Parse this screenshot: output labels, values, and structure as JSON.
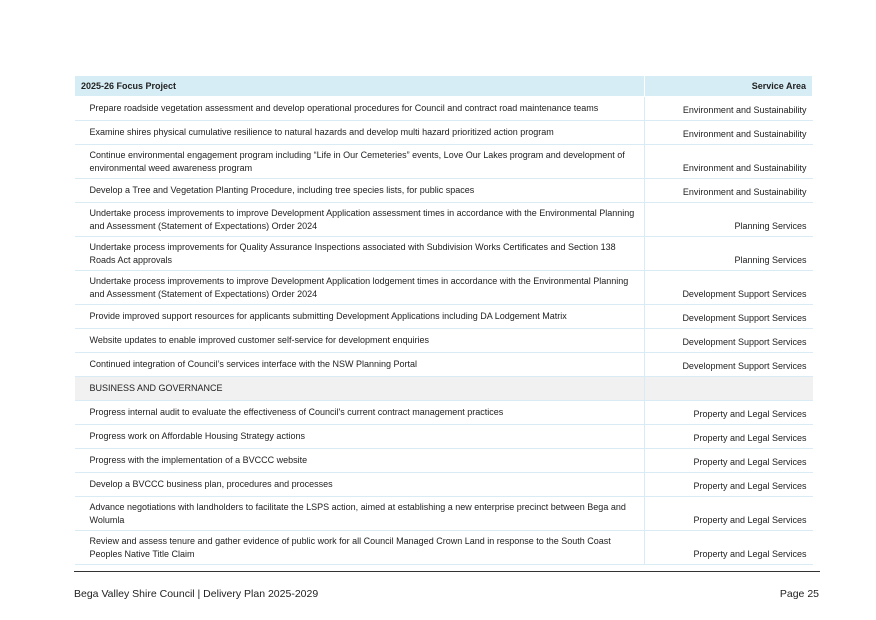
{
  "table": {
    "headers": [
      "2025-26 Focus Project",
      "Service Area"
    ],
    "rows": [
      {
        "project": "Prepare roadside vegetation assessment and develop operational procedures for Council and contract road maintenance teams",
        "service": "Environment and Sustainability"
      },
      {
        "project": "Examine shires physical cumulative resilience to natural hazards and develop multi hazard prioritized action program",
        "service": "Environment and Sustainability"
      },
      {
        "project": "Continue environmental engagement program including “Life in Our Cemeteries” events, Love Our Lakes program and development of environmental weed awareness program",
        "service": "Environment and Sustainability"
      },
      {
        "project": "Develop a Tree and Vegetation Planting Procedure, including tree species lists, for public spaces",
        "service": "Environment and Sustainability"
      },
      {
        "project": "Undertake process improvements to improve Development Application assessment times in accordance with the Environmental Planning and Assessment (Statement of Expectations) Order 2024",
        "service": "Planning Services"
      },
      {
        "project": "Undertake process improvements for Quality Assurance Inspections associated with Subdivision Works Certificates and Section 138 Roads Act approvals",
        "service": "Planning Services"
      },
      {
        "project": "Undertake process improvements to improve Development Application lodgement times in accordance with the Environmental Planning and Assessment (Statement of Expectations) Order 2024",
        "service": "Development Support Services"
      },
      {
        "project": "Provide improved support resources for applicants submitting Development Applications including DA Lodgement Matrix",
        "service": "Development Support Services"
      },
      {
        "project": "Website updates to enable improved customer self-service for development enquiries",
        "service": "Development Support Services"
      },
      {
        "project": "Continued integration of Council’s services interface with the NSW Planning Portal",
        "service": "Development Support Services"
      },
      {
        "section": "BUSINESS AND GOVERNANCE"
      },
      {
        "project": "Progress internal audit to evaluate the effectiveness of Council's current contract management practices",
        "service": "Property and Legal Services"
      },
      {
        "project": "Progress work on Affordable Housing Strategy actions",
        "service": "Property and Legal Services"
      },
      {
        "project": "Progress with the implementation of a BVCCC website",
        "service": "Property and Legal Services"
      },
      {
        "project": "Develop a BVCCC business plan, procedures and processes",
        "service": "Property and Legal Services"
      },
      {
        "project": "Advance negotiations with landholders to facilitate the LSPS action, aimed at establishing a new enterprise precinct between Bega and Wolumla",
        "service": "Property and Legal Services"
      },
      {
        "project": "Review and assess tenure and gather evidence of public work for all Council Managed Crown Land in response to the South Coast Peoples Native Title Claim",
        "service": "Property and Legal Services"
      }
    ]
  },
  "footer": {
    "left": "Bega Valley Shire Council | Delivery Plan 2025-2029",
    "right": "Page 25"
  }
}
